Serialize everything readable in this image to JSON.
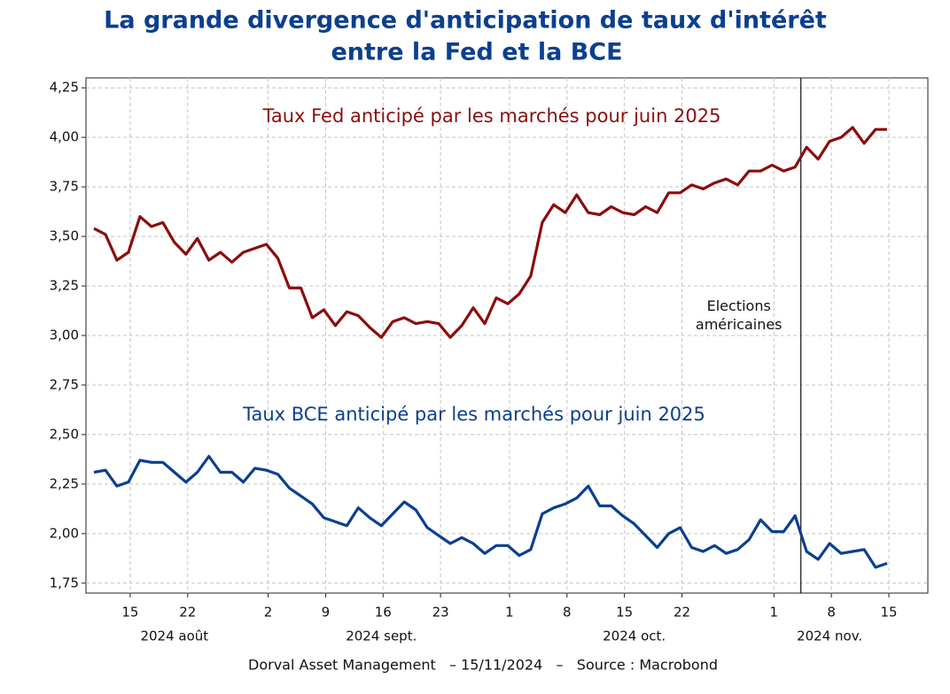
{
  "chart_data": {
    "type": "line",
    "title": "La grande divergence d'anticipation de taux d'intérêt",
    "subtitle": "entre la Fed et la BCE",
    "source": "Dorval Asset Management   – 15/11/2024   –   Source : Macrobond",
    "x": [
      "2024-08-12",
      "2024-08-13",
      "2024-08-14",
      "2024-08-15",
      "2024-08-16",
      "2024-08-19",
      "2024-08-20",
      "2024-08-21",
      "2024-08-22",
      "2024-08-23",
      "2024-08-26",
      "2024-08-27",
      "2024-08-28",
      "2024-08-29",
      "2024-08-30",
      "2024-09-02",
      "2024-09-03",
      "2024-09-04",
      "2024-09-05",
      "2024-09-06",
      "2024-09-09",
      "2024-09-10",
      "2024-09-11",
      "2024-09-12",
      "2024-09-13",
      "2024-09-16",
      "2024-09-17",
      "2024-09-18",
      "2024-09-19",
      "2024-09-20",
      "2024-09-23",
      "2024-09-24",
      "2024-09-25",
      "2024-09-26",
      "2024-09-27",
      "2024-09-30",
      "2024-10-01",
      "2024-10-02",
      "2024-10-03",
      "2024-10-04",
      "2024-10-07",
      "2024-10-08",
      "2024-10-09",
      "2024-10-10",
      "2024-10-11",
      "2024-10-14",
      "2024-10-15",
      "2024-10-16",
      "2024-10-17",
      "2024-10-18",
      "2024-10-21",
      "2024-10-22",
      "2024-10-23",
      "2024-10-24",
      "2024-10-25",
      "2024-10-28",
      "2024-10-29",
      "2024-10-30",
      "2024-10-31",
      "2024-11-01",
      "2024-11-04",
      "2024-11-05",
      "2024-11-06",
      "2024-11-07",
      "2024-11-08",
      "2024-11-11",
      "2024-11-12",
      "2024-11-13",
      "2024-11-14",
      "2024-11-15"
    ],
    "xticks": [
      {
        "value": "2024-08-15",
        "label": "15"
      },
      {
        "value": "2024-08-22",
        "label": "22"
      },
      {
        "value": "2024-09-02",
        "label": "2"
      },
      {
        "value": "2024-09-09",
        "label": "9"
      },
      {
        "value": "2024-09-16",
        "label": "16"
      },
      {
        "value": "2024-09-23",
        "label": "23"
      },
      {
        "value": "2024-10-01",
        "label": "1"
      },
      {
        "value": "2024-10-08",
        "label": "8"
      },
      {
        "value": "2024-10-15",
        "label": "15"
      },
      {
        "value": "2024-10-22",
        "label": "22"
      },
      {
        "value": "2024-11-01",
        "label": "1"
      },
      {
        "value": "2024-11-08",
        "label": "8"
      },
      {
        "value": "2024-11-15",
        "label": "15"
      }
    ],
    "x_group_labels": [
      {
        "value": "2024-08",
        "label": "2024 août"
      },
      {
        "value": "2024-09",
        "label": "2024 sept."
      },
      {
        "value": "2024-10",
        "label": "2024 oct."
      },
      {
        "value": "2024-11",
        "label": "2024 nov."
      }
    ],
    "ylim": [
      1.7,
      4.3
    ],
    "yticks": [
      {
        "value": 1.75,
        "label": "1,75"
      },
      {
        "value": 2.0,
        "label": "2,00"
      },
      {
        "value": 2.25,
        "label": "2,25"
      },
      {
        "value": 2.5,
        "label": "2,50"
      },
      {
        "value": 2.75,
        "label": "2,75"
      },
      {
        "value": 3.0,
        "label": "3,00"
      },
      {
        "value": 3.25,
        "label": "3,25"
      },
      {
        "value": 3.5,
        "label": "3,50"
      },
      {
        "value": 3.75,
        "label": "3,75"
      },
      {
        "value": 4.0,
        "label": "4,00"
      },
      {
        "value": 4.25,
        "label": "4,25"
      }
    ],
    "grid": true,
    "series": [
      {
        "name": "Taux Fed anticipé par les marchés pour juin 2025",
        "color": "#8b0d0d",
        "values": [
          3.54,
          3.51,
          3.38,
          3.42,
          3.6,
          3.55,
          3.57,
          3.47,
          3.41,
          3.49,
          3.38,
          3.42,
          3.37,
          3.42,
          3.44,
          3.46,
          3.39,
          3.24,
          3.24,
          3.09,
          3.13,
          3.05,
          3.12,
          3.1,
          3.04,
          2.99,
          3.07,
          3.09,
          3.06,
          3.07,
          3.06,
          2.99,
          3.05,
          3.14,
          3.06,
          3.19,
          3.16,
          3.21,
          3.3,
          3.57,
          3.66,
          3.62,
          3.71,
          3.62,
          3.61,
          3.65,
          3.62,
          3.61,
          3.65,
          3.62,
          3.72,
          3.72,
          3.76,
          3.74,
          3.77,
          3.79,
          3.76,
          3.83,
          3.83,
          3.86,
          3.83,
          3.85,
          3.95,
          3.89,
          3.98,
          4.0,
          4.05,
          3.97,
          4.04,
          4.04
        ]
      },
      {
        "name": "Taux BCE anticipé par les marchés pour juin 2025",
        "color": "#0b3f8f",
        "values": [
          2.31,
          2.32,
          2.24,
          2.26,
          2.37,
          2.36,
          2.36,
          2.31,
          2.26,
          2.31,
          2.39,
          2.31,
          2.31,
          2.26,
          2.33,
          2.32,
          2.3,
          2.23,
          2.19,
          2.15,
          2.08,
          2.06,
          2.04,
          2.13,
          2.08,
          2.04,
          2.1,
          2.16,
          2.12,
          2.03,
          1.99,
          1.95,
          1.98,
          1.95,
          1.9,
          1.94,
          1.94,
          1.89,
          1.92,
          2.1,
          2.13,
          2.15,
          2.18,
          2.24,
          2.14,
          2.14,
          2.09,
          2.05,
          1.99,
          1.93,
          2.0,
          2.03,
          1.93,
          1.91,
          1.94,
          1.9,
          1.92,
          1.97,
          2.07,
          2.01,
          2.01,
          2.09,
          1.91,
          1.87,
          1.95,
          1.9,
          1.91,
          1.92,
          1.83,
          1.85
        ]
      }
    ],
    "annotations": [
      {
        "x": "2024-11-05",
        "text": "Elections\naméricaines"
      }
    ]
  }
}
